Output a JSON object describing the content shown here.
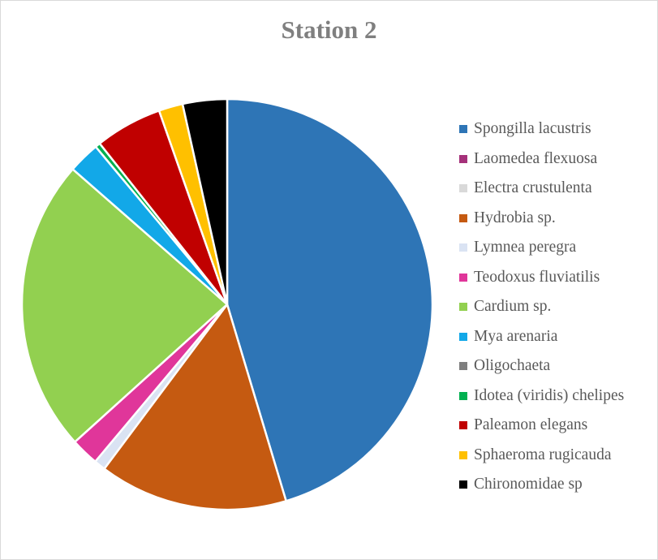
{
  "chart_data": {
    "type": "pie",
    "title": "Station 2",
    "legend_position": "right",
    "series": [
      {
        "name": "Spongilla lacustris",
        "value": 45.5,
        "color": "#2E75B6"
      },
      {
        "name": "Laomedea flexuosa",
        "value": 0.0,
        "color": "#A5317A"
      },
      {
        "name": "Electra crustulenta",
        "value": 0.0,
        "color": "#D9D9D9"
      },
      {
        "name": "Hydrobia sp.",
        "value": 14.9,
        "color": "#C55A11"
      },
      {
        "name": "Lymnea peregra",
        "value": 0.9,
        "color": "#DAE3F3"
      },
      {
        "name": "Teodoxus fluviatilis",
        "value": 2.2,
        "color": "#E0369A"
      },
      {
        "name": "Cardium sp.",
        "value": 23.2,
        "color": "#92D050"
      },
      {
        "name": "Mya arenaria",
        "value": 2.5,
        "color": "#12A8E8"
      },
      {
        "name": "Oligochaeta",
        "value": 0.0,
        "color": "#7F7F7F"
      },
      {
        "name": "Idotea (viridis) chelipes",
        "value": 0.4,
        "color": "#00B050"
      },
      {
        "name": "Paleamon elegans",
        "value": 5.3,
        "color": "#C00000"
      },
      {
        "name": "Sphaeroma rugicauda",
        "value": 1.9,
        "color": "#FFC000"
      },
      {
        "name": "Chironomidae sp",
        "value": 3.5,
        "color": "#000000"
      }
    ]
  }
}
